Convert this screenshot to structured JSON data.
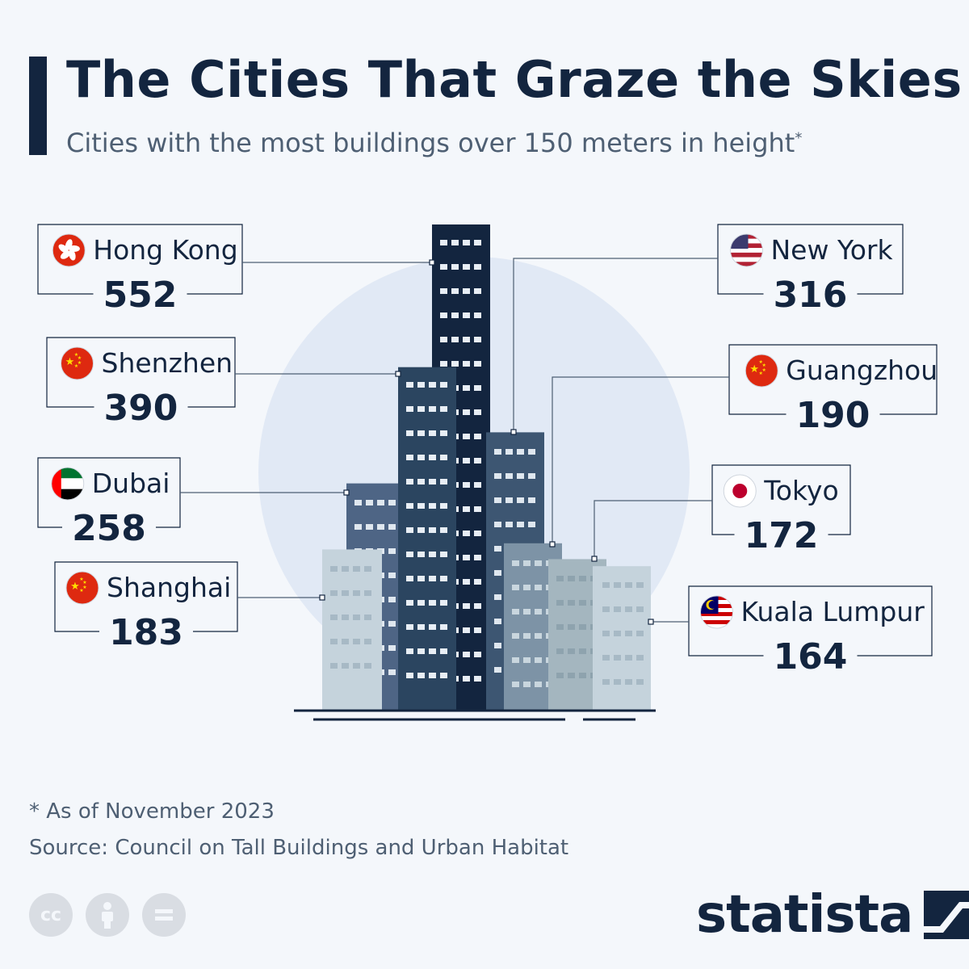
{
  "header": {
    "title": "The Cities That Graze the Skies",
    "subtitle": "Cities with the most buildings over 150 meters in height",
    "subtitle_mark": "*"
  },
  "chart_data": {
    "type": "bar",
    "categories": [
      "Hong Kong",
      "Shenzhen",
      "New York",
      "Dubai",
      "Guangzhou",
      "Shanghai",
      "Tokyo",
      "Kuala Lumpur"
    ],
    "values": [
      552,
      390,
      316,
      258,
      190,
      183,
      172,
      164
    ],
    "flags": [
      "hong-kong-flag-icon",
      "china-flag-icon",
      "usa-flag-icon",
      "uae-flag-icon",
      "china-flag-icon",
      "china-flag-icon",
      "japan-flag-icon",
      "malaysia-flag-icon"
    ],
    "colors": {
      "Hong Kong": "#13253f",
      "Shenzhen": "#2b4560",
      "New York": "#3d5672",
      "Dubai": "#4e6585",
      "Guangzhou": "#7d93a6",
      "Shanghai": "#c5d3dc",
      "Tokyo": "#a4b6bf",
      "Kuala Lumpur": "#c5d3dc"
    }
  },
  "footer": {
    "note": "* As of November 2023",
    "source": "Source: Council on Tall Buildings and Urban Habitat",
    "brand": "statista",
    "license_icons": [
      "cc-icon",
      "attribution-icon",
      "no-derivatives-icon"
    ]
  }
}
